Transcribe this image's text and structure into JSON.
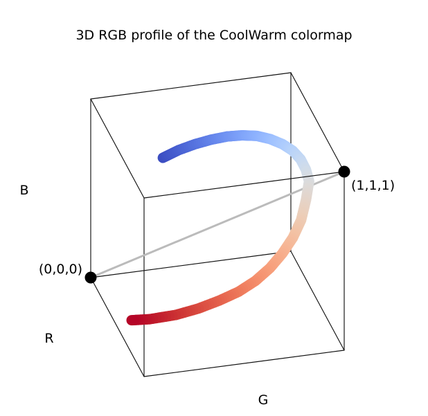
{
  "chart_data": {
    "type": "line",
    "title": "3D RGB profile of the CoolWarm colormap",
    "axes": {
      "x_label": "R",
      "y_label": "G",
      "z_label": "B"
    },
    "axis_ranges": {
      "r": [
        0,
        1
      ],
      "g": [
        0,
        1
      ],
      "b": [
        0,
        1
      ]
    },
    "grid": false,
    "legend": "none",
    "points": [
      {
        "label": "(0,0,0)",
        "r": 0,
        "g": 0,
        "b": 0
      },
      {
        "label": "(1,1,1)",
        "r": 1,
        "g": 1,
        "b": 1
      }
    ],
    "diagonal_color": "#bbbbbb",
    "series": [
      {
        "points": [
          {
            "r": 0.23,
            "g": 0.299,
            "b": 0.754
          },
          {
            "r": 0.275,
            "g": 0.365,
            "b": 0.812
          },
          {
            "r": 0.325,
            "g": 0.434,
            "b": 0.863
          },
          {
            "r": 0.378,
            "g": 0.501,
            "b": 0.908
          },
          {
            "r": 0.432,
            "g": 0.567,
            "b": 0.946
          },
          {
            "r": 0.487,
            "g": 0.628,
            "b": 0.974
          },
          {
            "r": 0.543,
            "g": 0.686,
            "b": 0.993
          },
          {
            "r": 0.601,
            "g": 0.737,
            "b": 1.0
          },
          {
            "r": 0.657,
            "g": 0.783,
            "b": 0.996
          },
          {
            "r": 0.71,
            "g": 0.82,
            "b": 0.983
          },
          {
            "r": 0.76,
            "g": 0.846,
            "b": 0.959
          },
          {
            "r": 0.807,
            "g": 0.86,
            "b": 0.925
          },
          {
            "r": 0.848,
            "g": 0.865,
            "b": 0.882
          },
          {
            "r": 0.888,
            "g": 0.839,
            "b": 0.804
          },
          {
            "r": 0.927,
            "g": 0.804,
            "b": 0.717
          },
          {
            "r": 0.953,
            "g": 0.756,
            "b": 0.64
          },
          {
            "r": 0.968,
            "g": 0.7,
            "b": 0.569
          },
          {
            "r": 0.97,
            "g": 0.637,
            "b": 0.497
          },
          {
            "r": 0.96,
            "g": 0.567,
            "b": 0.43
          },
          {
            "r": 0.937,
            "g": 0.489,
            "b": 0.368
          },
          {
            "r": 0.903,
            "g": 0.403,
            "b": 0.313
          },
          {
            "r": 0.86,
            "g": 0.31,
            "b": 0.258
          },
          {
            "r": 0.807,
            "g": 0.21,
            "b": 0.207
          },
          {
            "r": 0.747,
            "g": 0.095,
            "b": 0.167
          },
          {
            "r": 0.706,
            "g": 0.016,
            "b": 0.15
          }
        ]
      }
    ]
  }
}
